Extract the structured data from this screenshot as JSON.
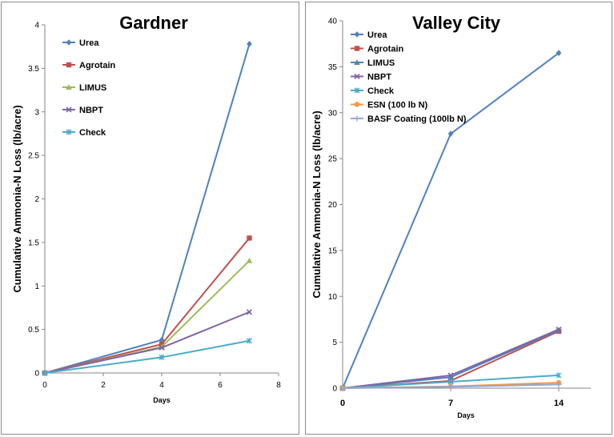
{
  "chart_data": [
    {
      "type": "line",
      "title": "Gardner",
      "xlabel": "Days",
      "ylabel": "Cumulative Ammonia-N Loss (lb/acre)",
      "xlim": [
        0,
        8
      ],
      "ylim": [
        0,
        4
      ],
      "x_ticks": [
        "0",
        "2",
        "4",
        "6",
        "8"
      ],
      "y_ticks": [
        "0",
        "0.5",
        "1",
        "1.5",
        "2",
        "2.5",
        "3",
        "3.5",
        "4"
      ],
      "x": [
        0,
        4,
        7
      ],
      "series": [
        {
          "name": "Urea",
          "values": [
            0,
            0.38,
            3.78
          ],
          "color": "#4f81bd",
          "marker": "diamond"
        },
        {
          "name": "Agrotain",
          "values": [
            0,
            0.33,
            1.55
          ],
          "color": "#c0504d",
          "marker": "square"
        },
        {
          "name": "LIMUS",
          "values": [
            0,
            0.3,
            1.29
          ],
          "color": "#9bbb59",
          "marker": "triangle"
        },
        {
          "name": "NBPT",
          "values": [
            0,
            0.29,
            0.7
          ],
          "color": "#8064a2",
          "marker": "x"
        },
        {
          "name": "Check",
          "values": [
            0,
            0.18,
            0.37
          ],
          "color": "#4bacc6",
          "marker": "asterisk"
        }
      ]
    },
    {
      "type": "line",
      "title": "Valley City",
      "xlabel": "Days",
      "ylabel": "Cumulative Ammonia-N Loss (lb/acre)",
      "ylim": [
        0,
        40
      ],
      "x_ticks": [
        "0",
        "7",
        "14"
      ],
      "y_ticks": [
        "0",
        "5",
        "10",
        "15",
        "20",
        "25",
        "30",
        "35",
        "40"
      ],
      "x": [
        0,
        7,
        14
      ],
      "series": [
        {
          "name": "Urea",
          "values": [
            0,
            27.7,
            36.5
          ],
          "color": "#4f81bd",
          "marker": "diamond"
        },
        {
          "name": "Agrotain",
          "values": [
            0,
            0.8,
            6.2
          ],
          "color": "#c0504d",
          "marker": "square"
        },
        {
          "name": "LIMUS",
          "values": [
            0,
            1.2,
            6.3
          ],
          "color": "#4f81bd",
          "marker": "triangle"
        },
        {
          "name": "NBPT",
          "values": [
            0,
            1.4,
            6.4
          ],
          "color": "#8064a2",
          "marker": "x"
        },
        {
          "name": "Check",
          "values": [
            0,
            0.7,
            1.4
          ],
          "color": "#4bacc6",
          "marker": "asterisk"
        },
        {
          "name": "ESN (100 lb N)",
          "values": [
            0,
            0.2,
            0.6
          ],
          "color": "#f79646",
          "marker": "circle"
        },
        {
          "name": "BASF Coating (100lb N)",
          "values": [
            0,
            0.15,
            0.4
          ],
          "color": "#93a9cf",
          "marker": "plus"
        }
      ]
    }
  ]
}
